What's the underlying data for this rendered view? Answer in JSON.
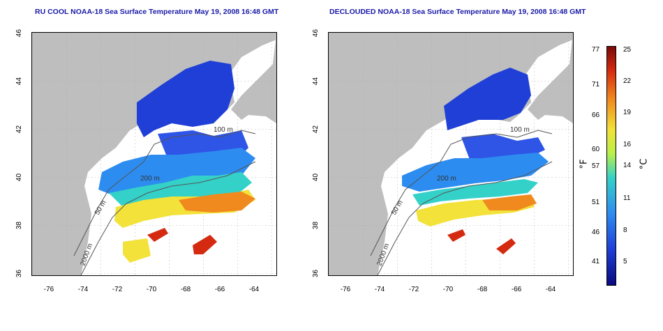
{
  "titles": {
    "left": "RU COOL NOAA-18 Sea Surface Temperature May 19, 2008 16:48 GMT",
    "right": "DECLOUDED NOAA-18 Sea Surface Temperature May 19, 2008 16:48 GMT"
  },
  "axes": {
    "x_ticks": [
      "-76",
      "-74",
      "-72",
      "-70",
      "-68",
      "-66",
      "-64"
    ],
    "y_ticks": [
      "46",
      "44",
      "42",
      "40",
      "38",
      "36"
    ]
  },
  "contour_labels": {
    "c50": "50 m",
    "c100": "100 m",
    "c200": "200 m",
    "c2000": "2000 m"
  },
  "colorbar": {
    "fahrenheit_unit": "°F",
    "celsius_unit": "°C",
    "fahrenheit_ticks": [
      "77",
      "71",
      "66",
      "60",
      "57",
      "51",
      "46",
      "41"
    ],
    "celsius_ticks": [
      "25",
      "22",
      "19",
      "16",
      "14",
      "11",
      "8",
      "5"
    ]
  },
  "colors": {
    "land": "#bebebe",
    "cold": "#1f3fd6",
    "cool": "#2d8cf0",
    "mild": "#34d1c8",
    "warm": "#f2e23a",
    "hot": "#f08a1e",
    "very_hot": "#d42a10"
  }
}
